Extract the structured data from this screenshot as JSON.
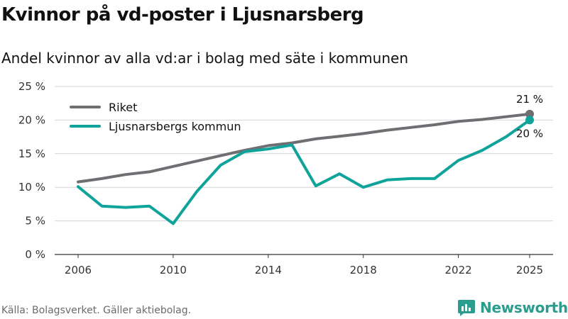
{
  "header": {
    "title": "Kvinnor på vd-poster i Ljusnarsberg",
    "subtitle": "Andel kvinnor av alla vd:ar i bolag med säte i kommunen"
  },
  "footer": {
    "source": "Källa: Bolagsverket. Gäller aktiebolag.",
    "brand": "Newsworthy"
  },
  "colors": {
    "riket": "#6e6e73",
    "kommun": "#0fa39a",
    "brand": "#2a9d8f"
  },
  "icons": {
    "logo": "newsworthy-logo-icon"
  },
  "chart_data": {
    "type": "line",
    "title": "Kvinnor på vd-poster i Ljusnarsberg",
    "xlabel": "",
    "ylabel": "",
    "xlim": [
      2006,
      2025
    ],
    "ylim": [
      0,
      25
    ],
    "yticks": [
      0,
      5,
      10,
      15,
      20,
      25
    ],
    "ytick_labels": [
      "0 %",
      "5 %",
      "10 %",
      "15 %",
      "20 %",
      "25 %"
    ],
    "xticks": [
      2006,
      2010,
      2014,
      2018,
      2022,
      2025
    ],
    "xtick_labels": [
      "2006",
      "2010",
      "2014",
      "2018",
      "2022",
      "2025"
    ],
    "grid": "horizontal",
    "legend_position": "top-left",
    "x": [
      2006,
      2007,
      2008,
      2009,
      2010,
      2011,
      2012,
      2013,
      2014,
      2015,
      2016,
      2017,
      2018,
      2019,
      2020,
      2021,
      2022,
      2023,
      2024,
      2025
    ],
    "series": [
      {
        "name": "Riket",
        "values": [
          10.8,
          11.3,
          11.9,
          12.3,
          13.1,
          13.9,
          14.7,
          15.5,
          16.2,
          16.6,
          17.2,
          17.6,
          18.0,
          18.5,
          18.9,
          19.3,
          19.8,
          20.1,
          20.5,
          20.9
        ],
        "end_label": "21 %"
      },
      {
        "name": "Ljusnarsbergs kommun",
        "values": [
          10.1,
          7.2,
          7.0,
          7.2,
          4.6,
          9.4,
          13.3,
          15.3,
          15.7,
          16.3,
          10.2,
          12.0,
          10.0,
          11.1,
          11.3,
          11.3,
          14.0,
          15.5,
          17.5,
          20.0
        ],
        "end_label": "20 %"
      }
    ]
  }
}
